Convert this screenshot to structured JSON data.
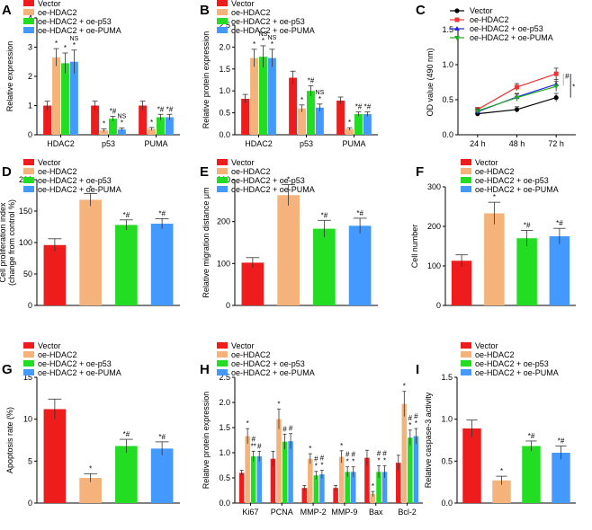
{
  "figure": {
    "colors": {
      "Vector": "#ee1c1c",
      "oe-HDAC2": "#f5b27a",
      "oe-HDAC2 + oe-p53": "#22dd22",
      "oe-HDAC2 + oe-PUMA": "#4499ff"
    },
    "line_colors": {
      "Vector": "#000000",
      "oe-HDAC2": "#ee3333",
      "oe-HDAC2 + oe-p53": "#2222ee",
      "oe-HDAC2 + oe-PUMA": "#22aa22"
    }
  },
  "chart_data": [
    {
      "panel": "A",
      "type": "bar",
      "ylabel": "Relative expression",
      "ylim": [
        0,
        4
      ],
      "yticks": [
        0,
        1,
        2,
        3,
        4
      ],
      "categories": [
        "HDAC2",
        "p53",
        "PUMA"
      ],
      "series": [
        {
          "name": "Vector",
          "values": [
            1.0,
            1.0,
            1.0
          ],
          "errors": [
            0.15,
            0.15,
            0.15
          ]
        },
        {
          "name": "oe-HDAC2",
          "values": [
            2.65,
            0.15,
            0.2
          ],
          "errors": [
            0.3,
            0.05,
            0.05
          ]
        },
        {
          "name": "oe-HDAC2 + oe-p53",
          "values": [
            2.45,
            0.55,
            0.6
          ],
          "errors": [
            0.35,
            0.08,
            0.1
          ]
        },
        {
          "name": "oe-HDAC2 + oe-PUMA",
          "values": [
            2.5,
            0.18,
            0.6
          ],
          "errors": [
            0.4,
            0.05,
            0.1
          ]
        }
      ],
      "annotations": [
        [
          "",
          "*",
          "*",
          "NS\n*"
        ],
        [
          "",
          "*",
          "*#",
          "NS\n*"
        ],
        [
          "",
          "*",
          "*#",
          "*#"
        ]
      ],
      "legend": [
        "Vector",
        "oe-HDAC2",
        "oe-HDAC2 + oe-p53",
        "oe-HDAC2 + oe-PUMA"
      ]
    },
    {
      "panel": "B",
      "type": "bar",
      "ylabel": "Relative protein expression",
      "ylim": [
        0,
        2.5
      ],
      "yticks": [
        0.0,
        0.5,
        1.0,
        1.5,
        2.0,
        2.5
      ],
      "categories": [
        "HDAC2",
        "p53",
        "PUMA"
      ],
      "series": [
        {
          "name": "Vector",
          "values": [
            0.82,
            1.3,
            0.78
          ],
          "errors": [
            0.1,
            0.15,
            0.08
          ]
        },
        {
          "name": "oe-HDAC2",
          "values": [
            1.75,
            0.6,
            0.13
          ],
          "errors": [
            0.2,
            0.08,
            0.03
          ]
        },
        {
          "name": "oe-HDAC2 + oe-p53",
          "values": [
            1.78,
            1.0,
            0.47
          ],
          "errors": [
            0.25,
            0.12,
            0.05
          ]
        },
        {
          "name": "oe-HDAC2 + oe-PUMA",
          "values": [
            1.75,
            0.62,
            0.47
          ],
          "errors": [
            0.2,
            0.08,
            0.05
          ]
        }
      ],
      "annotations": [
        [
          "",
          "*",
          "NS\n*",
          "NS\n*"
        ],
        [
          "",
          "*",
          "*#",
          "NS\n*"
        ],
        [
          "",
          "*",
          "*#",
          "*#"
        ]
      ],
      "legend": [
        "Vector",
        "oe-HDAC2",
        "oe-HDAC2 + oe-p53",
        "oe-HDAC2 + oe-PUMA"
      ]
    },
    {
      "panel": "C",
      "type": "line",
      "ylabel": "OD value (490 nm)",
      "ylim": [
        0,
        1.5
      ],
      "yticks": [
        0.0,
        0.5,
        1.0,
        1.5
      ],
      "x": [
        "24 h",
        "48 h",
        "72 h"
      ],
      "series": [
        {
          "name": "Vector",
          "values": [
            0.3,
            0.36,
            0.53
          ],
          "errors": [
            0.03,
            0.04,
            0.06
          ],
          "marker": "circle"
        },
        {
          "name": "oe-HDAC2",
          "values": [
            0.36,
            0.68,
            0.87
          ],
          "errors": [
            0.03,
            0.05,
            0.08
          ],
          "marker": "square"
        },
        {
          "name": "oe-HDAC2 + oe-p53",
          "values": [
            0.33,
            0.54,
            0.72
          ],
          "errors": [
            0.03,
            0.05,
            0.07
          ],
          "marker": "triangle"
        },
        {
          "name": "oe-HDAC2 + oe-PUMA",
          "values": [
            0.34,
            0.53,
            0.69
          ],
          "errors": [
            0.03,
            0.05,
            0.07
          ],
          "marker": "triangle-down"
        }
      ],
      "brackets": [
        "#",
        "*"
      ],
      "legend": [
        "Vector",
        "oe-HDAC2",
        "oe-HDAC2 + oe-p53",
        "oe-HDAC2 + oe-PUMA"
      ]
    },
    {
      "panel": "D",
      "type": "bar",
      "ylabel": "Cell proliferation index\n(change from control %)",
      "ylim": [
        0,
        200
      ],
      "yticks": [
        0,
        50,
        100,
        150,
        200
      ],
      "categories": [
        "Vector",
        "oe-HDAC2",
        "oe-HDAC2 + oe-p53",
        "oe-HDAC2 + oe-PUMA"
      ],
      "values": [
        96,
        168,
        128,
        130
      ],
      "errors": [
        10,
        10,
        8,
        8
      ],
      "annotations": [
        "",
        "*",
        "*#",
        "*#"
      ],
      "legend": [
        "Vector",
        "oe-HDAC2",
        "oe-HDAC2 + oe-p53",
        "oe-HDAC2 + oe-PUMA"
      ]
    },
    {
      "panel": "E",
      "type": "bar",
      "ylabel": "Relative migration distance μm",
      "ylim": [
        0,
        300
      ],
      "yticks": [
        0,
        100,
        200,
        300
      ],
      "categories": [
        "Vector",
        "oe-HDAC2",
        "oe-HDAC2 + oe-p53",
        "oe-HDAC2 + oe-PUMA"
      ],
      "values": [
        102,
        263,
        183,
        190
      ],
      "errors": [
        12,
        25,
        20,
        18
      ],
      "annotations": [
        "",
        "*",
        "*#",
        "*#"
      ],
      "legend": [
        "Vector",
        "oe-HDAC2",
        "oe-HDAC2 + oe-p53",
        "oe-HDAC2 + oe-PUMA"
      ]
    },
    {
      "panel": "F",
      "type": "bar",
      "ylabel": "Cell number",
      "ylim": [
        0,
        300
      ],
      "yticks": [
        0,
        100,
        200,
        300
      ],
      "categories": [
        "Vector",
        "oe-HDAC2",
        "oe-HDAC2 + oe-p53",
        "oe-HDAC2 + oe-PUMA"
      ],
      "values": [
        113,
        233,
        170,
        175
      ],
      "errors": [
        15,
        28,
        20,
        20
      ],
      "annotations": [
        "",
        "*",
        "*#",
        "*#"
      ],
      "legend": [
        "Vector",
        "oe-HDAC2",
        "oe-HDAC2 + oe-p53",
        "oe-HDAC2 + oe-PUMA"
      ]
    },
    {
      "panel": "G",
      "type": "bar",
      "ylabel": "Apoptosis rate (%)",
      "ylim": [
        0,
        15
      ],
      "yticks": [
        0,
        5,
        10,
        15
      ],
      "categories": [
        "Vector",
        "oe-HDAC2",
        "oe-HDAC2 + oe-p53",
        "oe-HDAC2 + oe-PUMA"
      ],
      "values": [
        11.2,
        3.0,
        6.8,
        6.5
      ],
      "errors": [
        1.2,
        0.5,
        0.8,
        0.8
      ],
      "annotations": [
        "",
        "*",
        "*#",
        "*#"
      ],
      "legend": [
        "Vector",
        "oe-HDAC2",
        "oe-HDAC2 + oe-p53",
        "oe-HDAC2 + oe-PUMA"
      ]
    },
    {
      "panel": "H",
      "type": "bar",
      "ylabel": "Relative protein expression",
      "ylim": [
        0,
        2.5
      ],
      "yticks": [
        0.0,
        0.5,
        1.0,
        1.5,
        2.0,
        2.5
      ],
      "categories": [
        "Ki67",
        "PCNA",
        "MMP-2",
        "MMP-9",
        "Bax",
        "Bcl-2"
      ],
      "series": [
        {
          "name": "Vector",
          "values": [
            0.6,
            0.88,
            0.3,
            0.3,
            0.9,
            0.8
          ],
          "errors": [
            0.05,
            0.15,
            0.05,
            0.05,
            0.15,
            0.15
          ]
        },
        {
          "name": "oe-HDAC2",
          "values": [
            1.33,
            1.67,
            0.88,
            0.92,
            0.18,
            1.97
          ],
          "errors": [
            0.15,
            0.2,
            0.1,
            0.12,
            0.05,
            0.25
          ]
        },
        {
          "name": "oe-HDAC2 + oe-p53",
          "values": [
            0.93,
            1.22,
            0.55,
            0.62,
            0.62,
            1.3
          ],
          "errors": [
            0.1,
            0.15,
            0.08,
            0.1,
            0.12,
            0.15
          ]
        },
        {
          "name": "oe-HDAC2 + oe-PUMA",
          "values": [
            0.93,
            1.23,
            0.57,
            0.62,
            0.62,
            1.33
          ],
          "errors": [
            0.1,
            0.15,
            0.08,
            0.1,
            0.12,
            0.15
          ]
        }
      ],
      "annotations": [
        [
          "",
          "*",
          "#\n**",
          "#"
        ],
        [
          "",
          "*",
          "#",
          "#"
        ],
        [
          "",
          "*",
          "#\n*",
          "#\n*"
        ],
        [
          "",
          "*",
          "#\n*",
          "#\n*"
        ],
        [
          "",
          "*",
          "#\n*",
          "#\n*"
        ],
        [
          "",
          "*",
          "#\n*",
          "#\n*"
        ]
      ],
      "legend": [
        "Vector",
        "oe-HDAC2",
        "oe-HDAC2 + oe-p53",
        "oe-HDAC2 + oe-PUMA"
      ]
    },
    {
      "panel": "I",
      "type": "bar",
      "ylabel": "Relative caspase-3 activity",
      "ylim": [
        0,
        1.5
      ],
      "yticks": [
        0.0,
        0.5,
        1.0,
        1.5
      ],
      "categories": [
        "Vector",
        "oe-HDAC2",
        "oe-HDAC2 + oe-p53",
        "oe-HDAC2 + oe-PUMA"
      ],
      "values": [
        0.89,
        0.27,
        0.68,
        0.6
      ],
      "errors": [
        0.1,
        0.05,
        0.06,
        0.08
      ],
      "annotations": [
        "",
        "*",
        "*#",
        "*#"
      ],
      "legend": [
        "Vector",
        "oe-HDAC2",
        "oe-HDAC2 + oe-p53",
        "oe-HDAC2 + oe-PUMA"
      ]
    }
  ]
}
